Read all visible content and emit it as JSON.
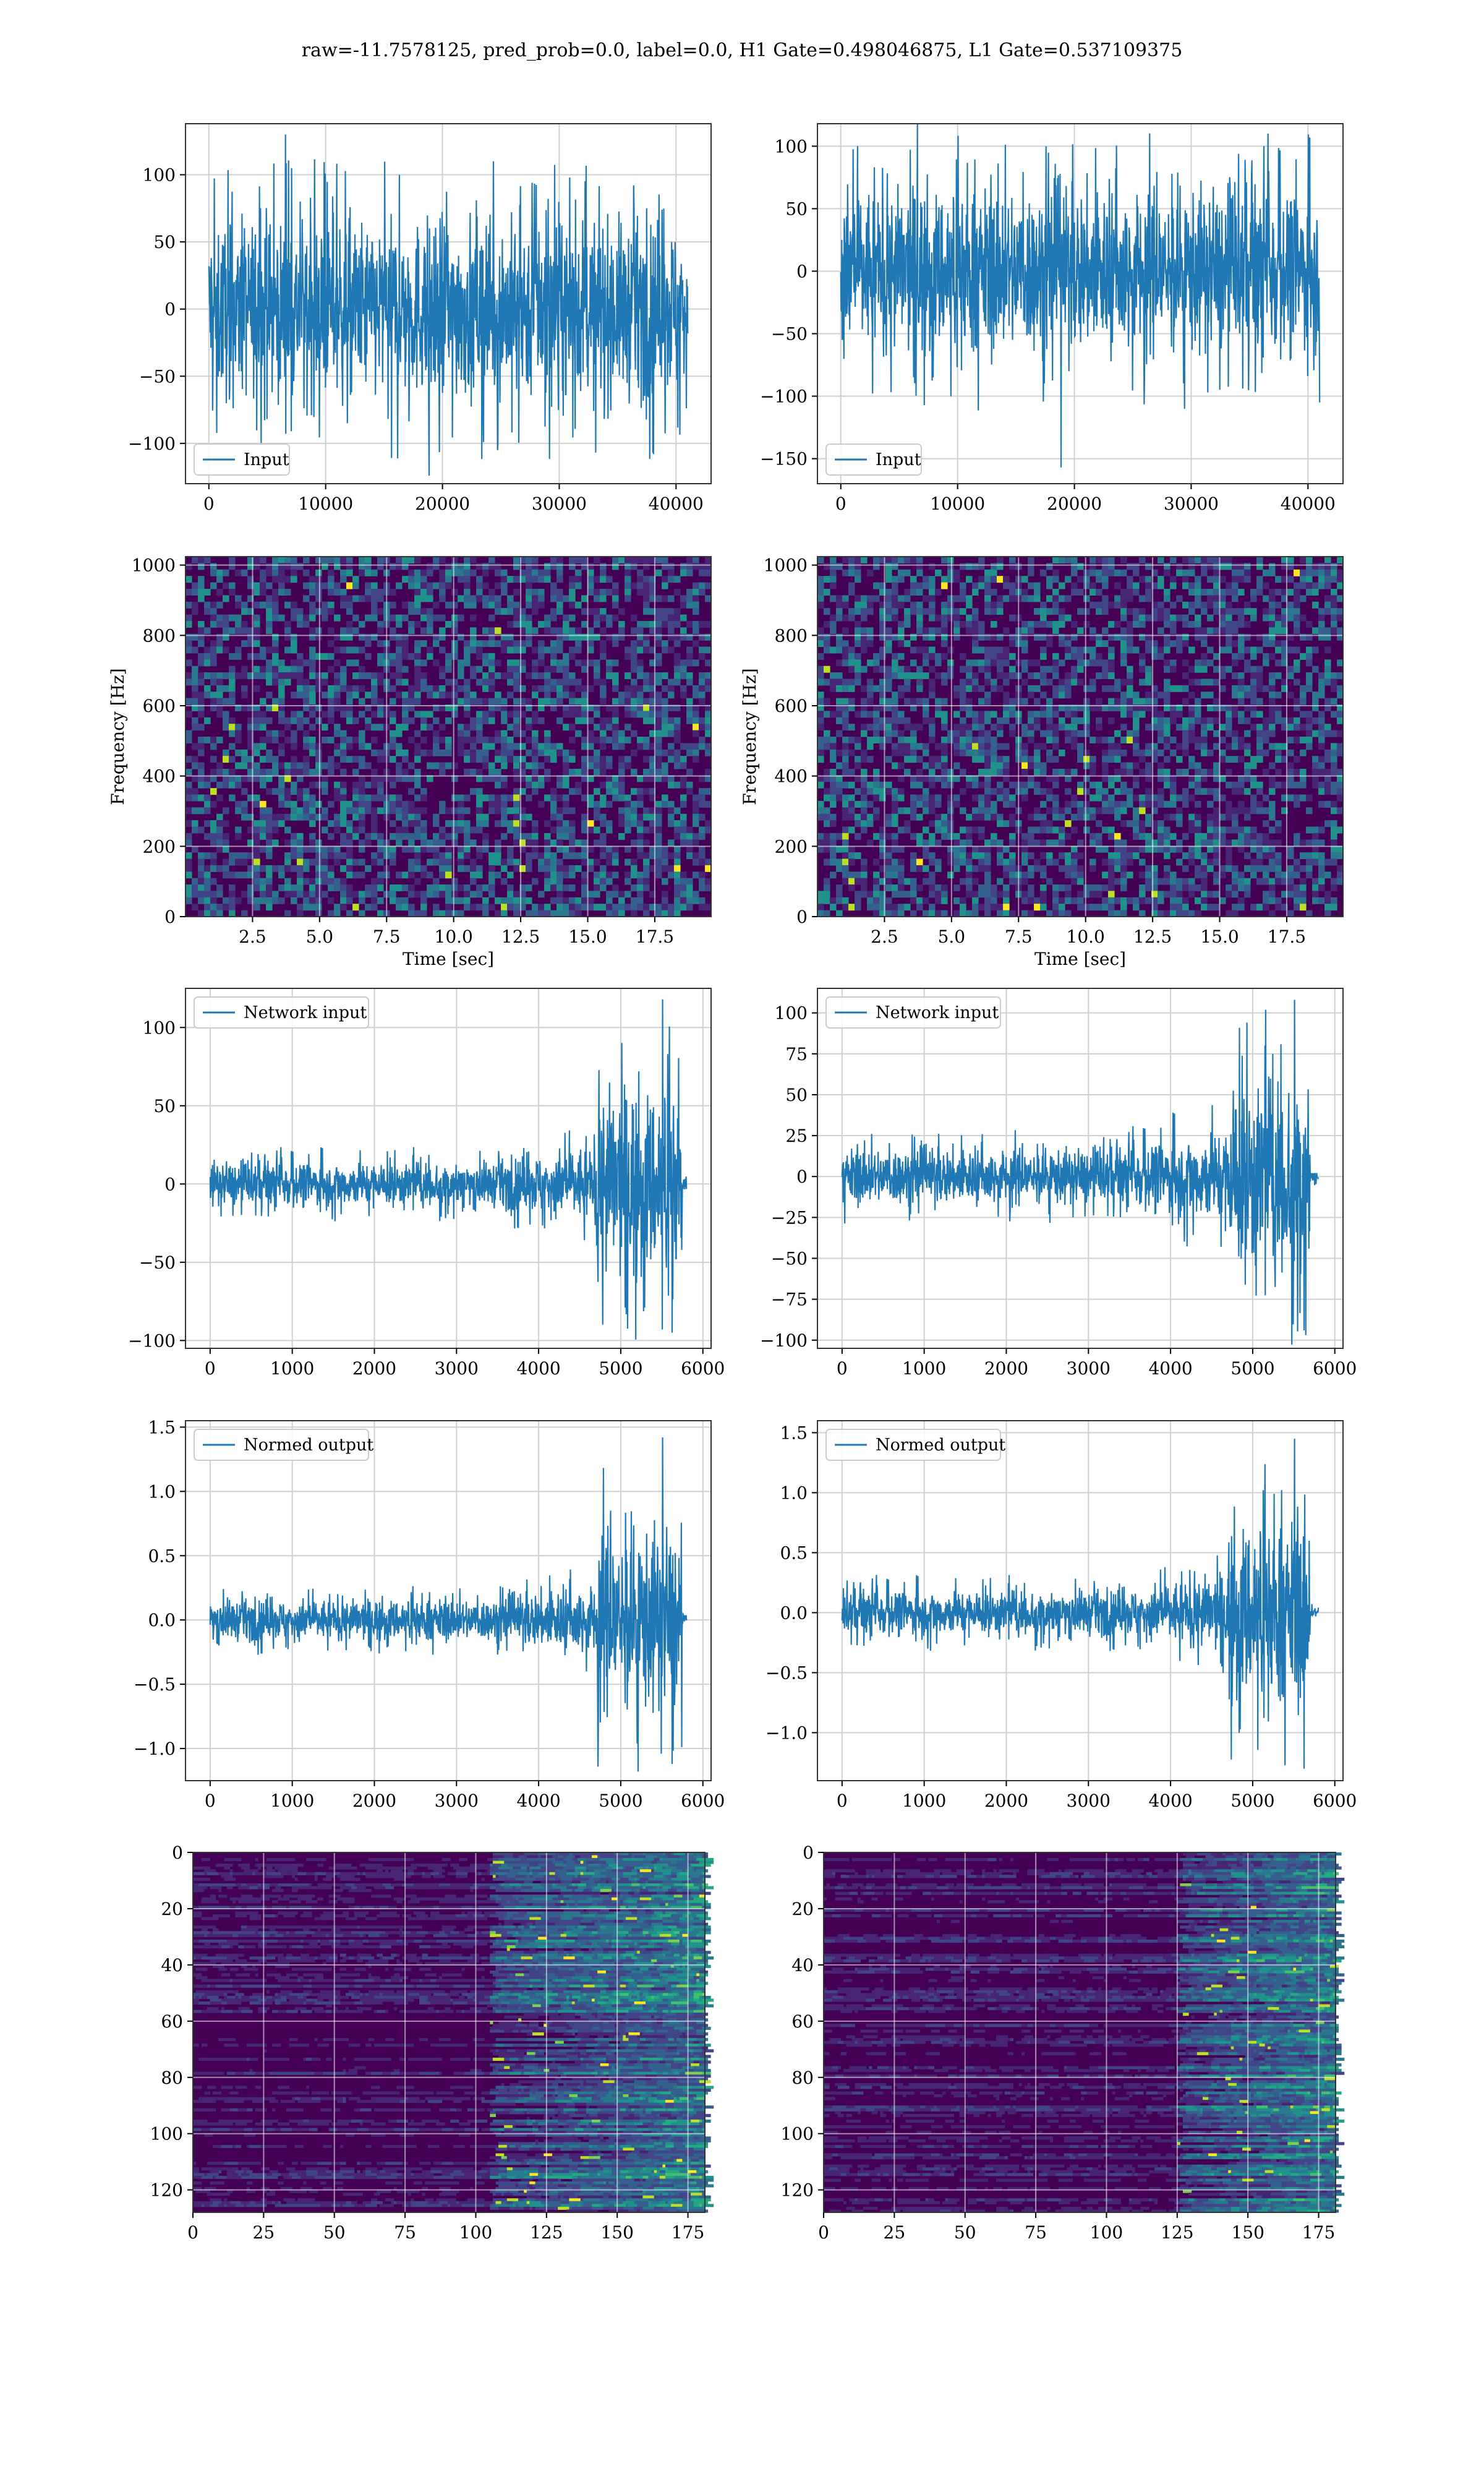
{
  "figure": {
    "title": "raw=-11.7578125, pred_prob=0.0, label=0.0, H1 Gate=0.498046875, L1 Gate=0.537109375"
  },
  "colors": {
    "line": "#1f77b4",
    "grid": "#cfcfcf",
    "viridis_dark": "#440154",
    "viridis_mid": "#21918c",
    "viridis_bright": "#fde725"
  },
  "chart_data": [
    {
      "id": "row1-left",
      "type": "line",
      "legend": "Input",
      "legend_position": "lower-left",
      "xlim": [
        -2000,
        43000
      ],
      "ylim": [
        -130,
        138
      ],
      "xticks": [
        0,
        10000,
        20000,
        30000,
        40000
      ],
      "yticks": [
        -100,
        -50,
        0,
        50,
        100
      ],
      "envelope": {
        "x": [
          0,
          41000
        ],
        "typical": 70,
        "max": 130,
        "min": -124
      },
      "grid": true
    },
    {
      "id": "row1-right",
      "type": "line",
      "legend": "Input",
      "legend_position": "lower-left",
      "xlim": [
        -2000,
        43000
      ],
      "ylim": [
        -170,
        118
      ],
      "xticks": [
        0,
        10000,
        20000,
        30000,
        40000
      ],
      "yticks": [
        -150,
        -100,
        -50,
        0,
        50,
        100
      ],
      "envelope": {
        "x": [
          0,
          41000
        ],
        "typical": 70,
        "max": 118,
        "min": -157
      },
      "grid": true
    },
    {
      "id": "row2-left",
      "type": "heatmap",
      "xlabel": "Time [sec]",
      "ylabel": "Frequency [Hz]",
      "xlim": [
        0,
        19.6
      ],
      "ylim": [
        0,
        1024
      ],
      "xticks": [
        2.5,
        5.0,
        7.5,
        10.0,
        12.5,
        15.0,
        17.5
      ],
      "xtick_labels": [
        "2.5",
        "5.0",
        "7.5",
        "10.0",
        "12.5",
        "15.0",
        "17.5"
      ],
      "yticks": [
        0,
        200,
        400,
        600,
        800,
        1000
      ],
      "grid": true
    },
    {
      "id": "row2-right",
      "type": "heatmap",
      "xlabel": "Time [sec]",
      "ylabel": "Frequency [Hz]",
      "xlim": [
        0,
        19.6
      ],
      "ylim": [
        0,
        1024
      ],
      "xticks": [
        2.5,
        5.0,
        7.5,
        10.0,
        12.5,
        15.0,
        17.5
      ],
      "xtick_labels": [
        "2.5",
        "5.0",
        "7.5",
        "10.0",
        "12.5",
        "15.0",
        "17.5"
      ],
      "yticks": [
        0,
        200,
        400,
        600,
        800,
        1000
      ],
      "grid": true
    },
    {
      "id": "row3-left",
      "type": "line",
      "legend": "Network input",
      "legend_position": "upper-left",
      "xlim": [
        -300,
        6100
      ],
      "ylim": [
        -105,
        125
      ],
      "xticks": [
        0,
        1000,
        2000,
        3000,
        4000,
        5000,
        6000
      ],
      "yticks": [
        -100,
        -50,
        0,
        50,
        100
      ],
      "envelope": {
        "x": [
          0,
          5800
        ],
        "burst_start": 4700,
        "burst_end": 5750,
        "typical": 15,
        "burst": 65,
        "max": 118,
        "min": -95
      },
      "grid": true
    },
    {
      "id": "row3-right",
      "type": "line",
      "legend": "Network input",
      "legend_position": "upper-left",
      "xlim": [
        -300,
        6100
      ],
      "ylim": [
        -105,
        115
      ],
      "xticks": [
        0,
        1000,
        2000,
        3000,
        4000,
        5000,
        6000
      ],
      "yticks": [
        -100,
        -75,
        -50,
        -25,
        0,
        25,
        50,
        75,
        100
      ],
      "envelope": {
        "x": [
          0,
          5800
        ],
        "burst_start": 4700,
        "burst_end": 5700,
        "typical": 18,
        "burst": 65,
        "max": 108,
        "min": -94
      },
      "grid": true
    },
    {
      "id": "row4-left",
      "type": "line",
      "legend": "Normed output",
      "legend_position": "upper-left",
      "xlim": [
        -300,
        6100
      ],
      "ylim": [
        -1.25,
        1.55
      ],
      "xticks": [
        0,
        1000,
        2000,
        3000,
        4000,
        5000,
        6000
      ],
      "yticks": [
        -1.0,
        -0.5,
        0.0,
        0.5,
        1.0,
        1.5
      ],
      "ytick_labels": [
        "−1.0",
        "−0.5",
        "0.0",
        "0.5",
        "1.0",
        "1.5"
      ],
      "envelope": {
        "x": [
          0,
          5800
        ],
        "burst_start": 4700,
        "burst_end": 5750,
        "typical": 0.17,
        "burst": 0.75,
        "max": 1.42,
        "min": -1.12
      },
      "grid": true
    },
    {
      "id": "row4-right",
      "type": "line",
      "legend": "Normed output",
      "legend_position": "upper-left",
      "xlim": [
        -300,
        6100
      ],
      "ylim": [
        -1.4,
        1.6
      ],
      "xticks": [
        0,
        1000,
        2000,
        3000,
        4000,
        5000,
        6000
      ],
      "yticks": [
        -1.0,
        -0.5,
        0.0,
        0.5,
        1.0,
        1.5
      ],
      "ytick_labels": [
        "−1.0",
        "−0.5",
        "0.0",
        "0.5",
        "1.0",
        "1.5"
      ],
      "envelope": {
        "x": [
          0,
          5800
        ],
        "burst_start": 4700,
        "burst_end": 5700,
        "typical": 0.2,
        "burst": 0.8,
        "max": 1.45,
        "min": -1.3
      },
      "grid": true
    },
    {
      "id": "row5-left",
      "type": "heatmap",
      "xlim": [
        0,
        181
      ],
      "ylim": [
        128,
        0
      ],
      "xticks": [
        0,
        25,
        50,
        75,
        100,
        125,
        150,
        175
      ],
      "yticks": [
        0,
        20,
        40,
        60,
        80,
        100,
        120
      ],
      "activity_onset_x": 105,
      "grid": true
    },
    {
      "id": "row5-right",
      "type": "heatmap",
      "xlim": [
        0,
        181
      ],
      "ylim": [
        128,
        0
      ],
      "xticks": [
        0,
        25,
        50,
        75,
        100,
        125,
        150,
        175
      ],
      "yticks": [
        0,
        20,
        40,
        60,
        80,
        100,
        120
      ],
      "activity_onset_x": 125,
      "grid": true
    }
  ]
}
